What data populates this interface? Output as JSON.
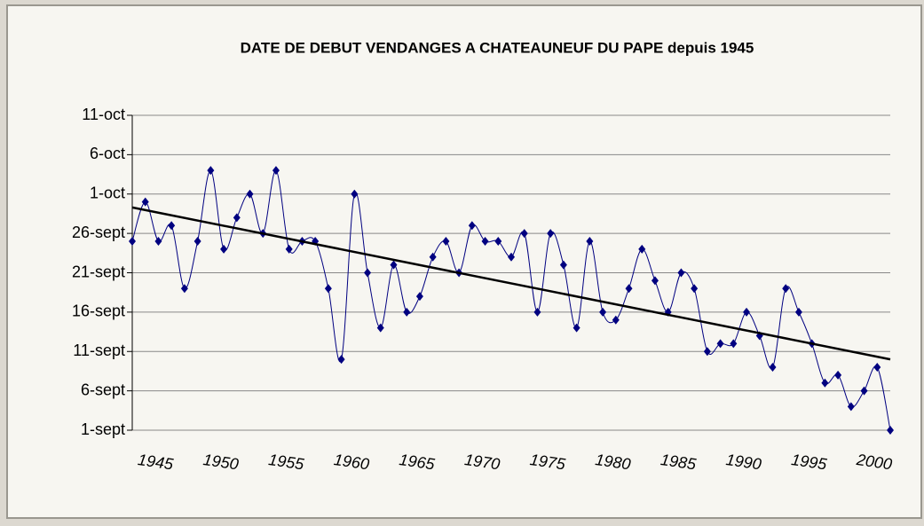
{
  "chart_data": {
    "type": "line",
    "title": "DATE DE DEBUT VENDANGES A CHATEAUNEUF DU PAPE depuis 1945",
    "x": [
      1945,
      1946,
      1947,
      1948,
      1949,
      1950,
      1951,
      1952,
      1953,
      1954,
      1955,
      1956,
      1957,
      1958,
      1959,
      1960,
      1961,
      1962,
      1963,
      1964,
      1965,
      1966,
      1967,
      1968,
      1969,
      1970,
      1971,
      1972,
      1973,
      1974,
      1975,
      1976,
      1977,
      1978,
      1979,
      1980,
      1981,
      1982,
      1983,
      1984,
      1985,
      1986,
      1987,
      1988,
      1989,
      1990,
      1991,
      1992,
      1993,
      1994,
      1995,
      1996,
      1997,
      1998,
      1999,
      2000,
      2001,
      2002,
      2003
    ],
    "series": [
      {
        "color": "#000080",
        "values": [
          25,
          30,
          25,
          27,
          19,
          25,
          34,
          24,
          28,
          31,
          26,
          34,
          24,
          25,
          25,
          19,
          10,
          31,
          21,
          14,
          22,
          16,
          18,
          23,
          25,
          21,
          27,
          25,
          25,
          23,
          26,
          16,
          26,
          22,
          14,
          25,
          16,
          15,
          19,
          24,
          20,
          16,
          21,
          19,
          11,
          12,
          12,
          16,
          13,
          9,
          19,
          16,
          12,
          7,
          8,
          4,
          6,
          9,
          1
        ]
      }
    ],
    "trend": {
      "color": "#000000",
      "x": [
        1945,
        2003
      ],
      "values": [
        29.3,
        10
      ]
    },
    "xlim": [
      1945,
      2003
    ],
    "xticks": [
      1945,
      1950,
      1955,
      1960,
      1965,
      1970,
      1975,
      1980,
      1985,
      1990,
      1995,
      2000
    ],
    "ylim": [
      1,
      41
    ],
    "yticks": [
      {
        "value": 1,
        "label": "1-sept"
      },
      {
        "value": 6,
        "label": "6-sept"
      },
      {
        "value": 11,
        "label": "11-sept"
      },
      {
        "value": 16,
        "label": "16-sept"
      },
      {
        "value": 21,
        "label": "21-sept"
      },
      {
        "value": 26,
        "label": "26-sept"
      },
      {
        "value": 31,
        "label": "1-oct"
      },
      {
        "value": 36,
        "label": "6-oct"
      },
      {
        "value": 41,
        "label": "11-oct"
      }
    ],
    "grid": true
  }
}
